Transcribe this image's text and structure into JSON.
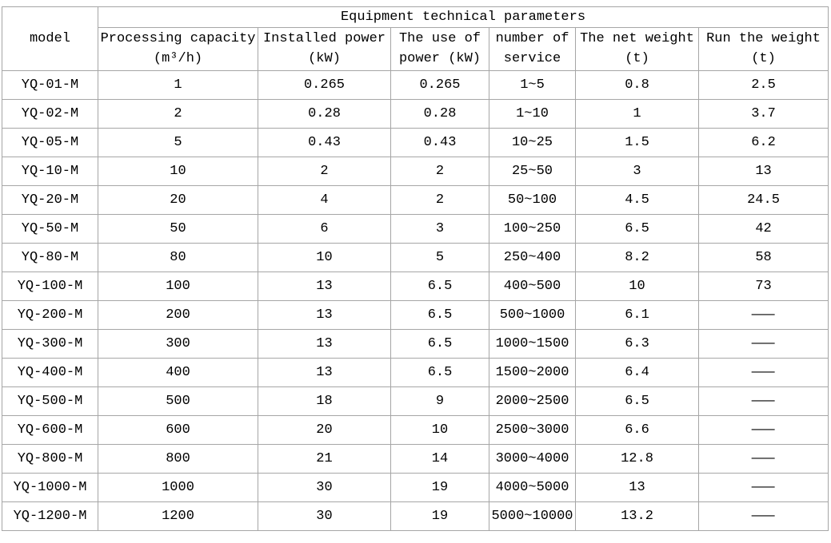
{
  "table": {
    "title": "Equipment technical parameters",
    "model_header": "model",
    "columns": [
      "Processing capacity\n(m³/h)",
      "Installed power\n(kW)",
      "The use of\npower (kW)",
      "number of\nservice",
      "The net weight\n(t)",
      "Run the weight\n(t)"
    ],
    "rows": [
      {
        "model": "YQ-01-M",
        "values": [
          "1",
          "0.265",
          "0.265",
          "1~5",
          "0.8",
          "2.5"
        ]
      },
      {
        "model": "YQ-02-M",
        "values": [
          "2",
          "0.28",
          "0.28",
          "1~10",
          "1",
          "3.7"
        ]
      },
      {
        "model": "YQ-05-M",
        "values": [
          "5",
          "0.43",
          "0.43",
          "10~25",
          "1.5",
          "6.2"
        ]
      },
      {
        "model": "YQ-10-M",
        "values": [
          "10",
          "2",
          "2",
          "25~50",
          "3",
          "13"
        ]
      },
      {
        "model": "YQ-20-M",
        "values": [
          "20",
          "4",
          "2",
          "50~100",
          "4.5",
          "24.5"
        ]
      },
      {
        "model": "YQ-50-M",
        "values": [
          "50",
          "6",
          "3",
          "100~250",
          "6.5",
          "42"
        ]
      },
      {
        "model": "YQ-80-M",
        "values": [
          "80",
          "10",
          "5",
          "250~400",
          "8.2",
          "58"
        ]
      },
      {
        "model": "YQ-100-M",
        "values": [
          "100",
          "13",
          "6.5",
          "400~500",
          "10",
          "73"
        ]
      },
      {
        "model": "YQ-200-M",
        "values": [
          "200",
          "13",
          "6.5",
          "500~1000",
          "6.1",
          "—"
        ]
      },
      {
        "model": "YQ-300-M",
        "values": [
          "300",
          "13",
          "6.5",
          "1000~1500",
          "6.3",
          "—"
        ]
      },
      {
        "model": "YQ-400-M",
        "values": [
          "400",
          "13",
          "6.5",
          "1500~2000",
          "6.4",
          "—"
        ]
      },
      {
        "model": "YQ-500-M",
        "values": [
          "500",
          "18",
          "9",
          "2000~2500",
          "6.5",
          "—"
        ]
      },
      {
        "model": "YQ-600-M",
        "values": [
          "600",
          "20",
          "10",
          "2500~3000",
          "6.6",
          "—"
        ]
      },
      {
        "model": "YQ-800-M",
        "values": [
          "800",
          "21",
          "14",
          "3000~4000",
          "12.8",
          "—"
        ]
      },
      {
        "model": "YQ-1000-M",
        "values": [
          "1000",
          "30",
          "19",
          "4000~5000",
          "13",
          "—"
        ]
      },
      {
        "model": "YQ-1200-M",
        "values": [
          "1200",
          "30",
          "19",
          "5000~10000",
          "13.2",
          "—"
        ]
      }
    ]
  },
  "chart_data": {
    "type": "table",
    "title": "Equipment technical parameters",
    "columns": [
      "model",
      "Processing capacity (m³/h)",
      "Installed power (kW)",
      "The use of power (kW)",
      "number of service",
      "The net weight (t)",
      "Run the weight (t)"
    ],
    "rows": [
      [
        "YQ-01-M",
        "1",
        "0.265",
        "0.265",
        "1~5",
        "0.8",
        "2.5"
      ],
      [
        "YQ-02-M",
        "2",
        "0.28",
        "0.28",
        "1~10",
        "1",
        "3.7"
      ],
      [
        "YQ-05-M",
        "5",
        "0.43",
        "0.43",
        "10~25",
        "1.5",
        "6.2"
      ],
      [
        "YQ-10-M",
        "10",
        "2",
        "2",
        "25~50",
        "3",
        "13"
      ],
      [
        "YQ-20-M",
        "20",
        "4",
        "2",
        "50~100",
        "4.5",
        "24.5"
      ],
      [
        "YQ-50-M",
        "50",
        "6",
        "3",
        "100~250",
        "6.5",
        "42"
      ],
      [
        "YQ-80-M",
        "80",
        "10",
        "5",
        "250~400",
        "8.2",
        "58"
      ],
      [
        "YQ-100-M",
        "100",
        "13",
        "6.5",
        "400~500",
        "10",
        "73"
      ],
      [
        "YQ-200-M",
        "200",
        "13",
        "6.5",
        "500~1000",
        "6.1",
        "—"
      ],
      [
        "YQ-300-M",
        "300",
        "13",
        "6.5",
        "1000~1500",
        "6.3",
        "—"
      ],
      [
        "YQ-400-M",
        "400",
        "13",
        "6.5",
        "1500~2000",
        "6.4",
        "—"
      ],
      [
        "YQ-500-M",
        "500",
        "18",
        "9",
        "2000~2500",
        "6.5",
        "—"
      ],
      [
        "YQ-600-M",
        "600",
        "20",
        "10",
        "2500~3000",
        "6.6",
        "—"
      ],
      [
        "YQ-800-M",
        "800",
        "21",
        "14",
        "3000~4000",
        "12.8",
        "—"
      ],
      [
        "YQ-1000-M",
        "1000",
        "30",
        "19",
        "4000~5000",
        "13",
        "—"
      ],
      [
        "YQ-1200-M",
        "1200",
        "30",
        "19",
        "5000~10000",
        "13.2",
        "—"
      ]
    ]
  }
}
